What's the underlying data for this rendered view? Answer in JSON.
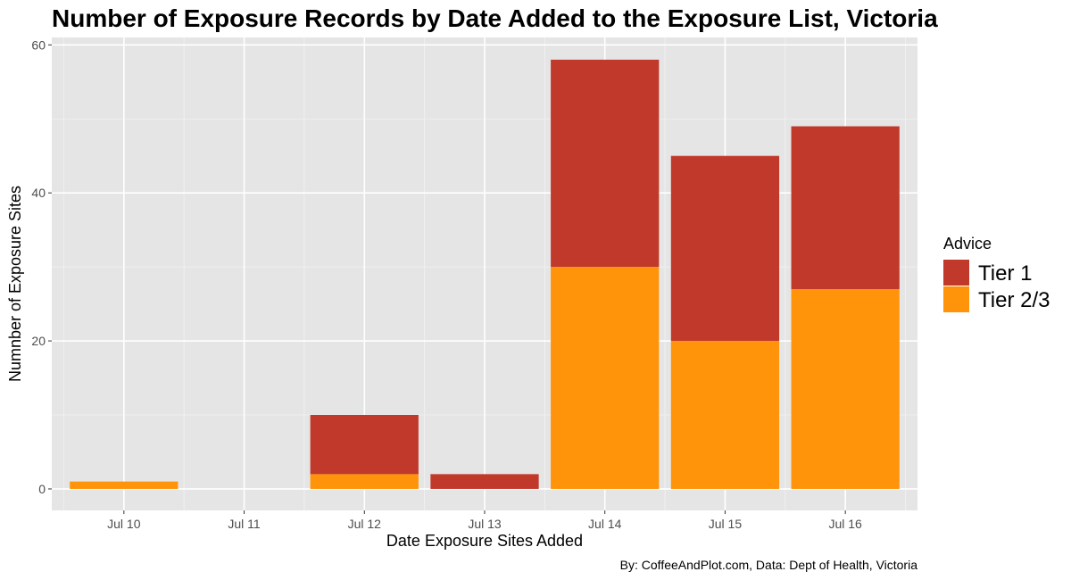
{
  "chart_data": {
    "type": "bar",
    "stacked": true,
    "title": "Number of Exposure Records by Date Added to the Exposure List, Victoria",
    "xlabel": "Date Exposure Sites Added",
    "ylabel": "Numnber of Exposure Sites",
    "caption": "By: CoffeeAndPlot.com, Data: Dept of Health, Victoria",
    "categories": [
      "Jul 10",
      "Jul 11",
      "Jul 12",
      "Jul 13",
      "Jul 14",
      "Jul 15",
      "Jul 16"
    ],
    "series": [
      {
        "name": "Tier 2/3",
        "color": "#FF9309",
        "values": [
          1,
          0,
          2,
          0,
          30,
          20,
          27
        ]
      },
      {
        "name": "Tier 1",
        "color": "#C0392B",
        "values": [
          0,
          0,
          8,
          2,
          28,
          25,
          22
        ]
      }
    ],
    "ylim": [
      -2.9,
      61
    ],
    "yticks": [
      0,
      20,
      40,
      60
    ],
    "grid": true,
    "panel_background": "#E5E5E5",
    "legend": {
      "title": "Advice",
      "placement": "right",
      "order": [
        "Tier 1",
        "Tier 2/3"
      ]
    }
  }
}
